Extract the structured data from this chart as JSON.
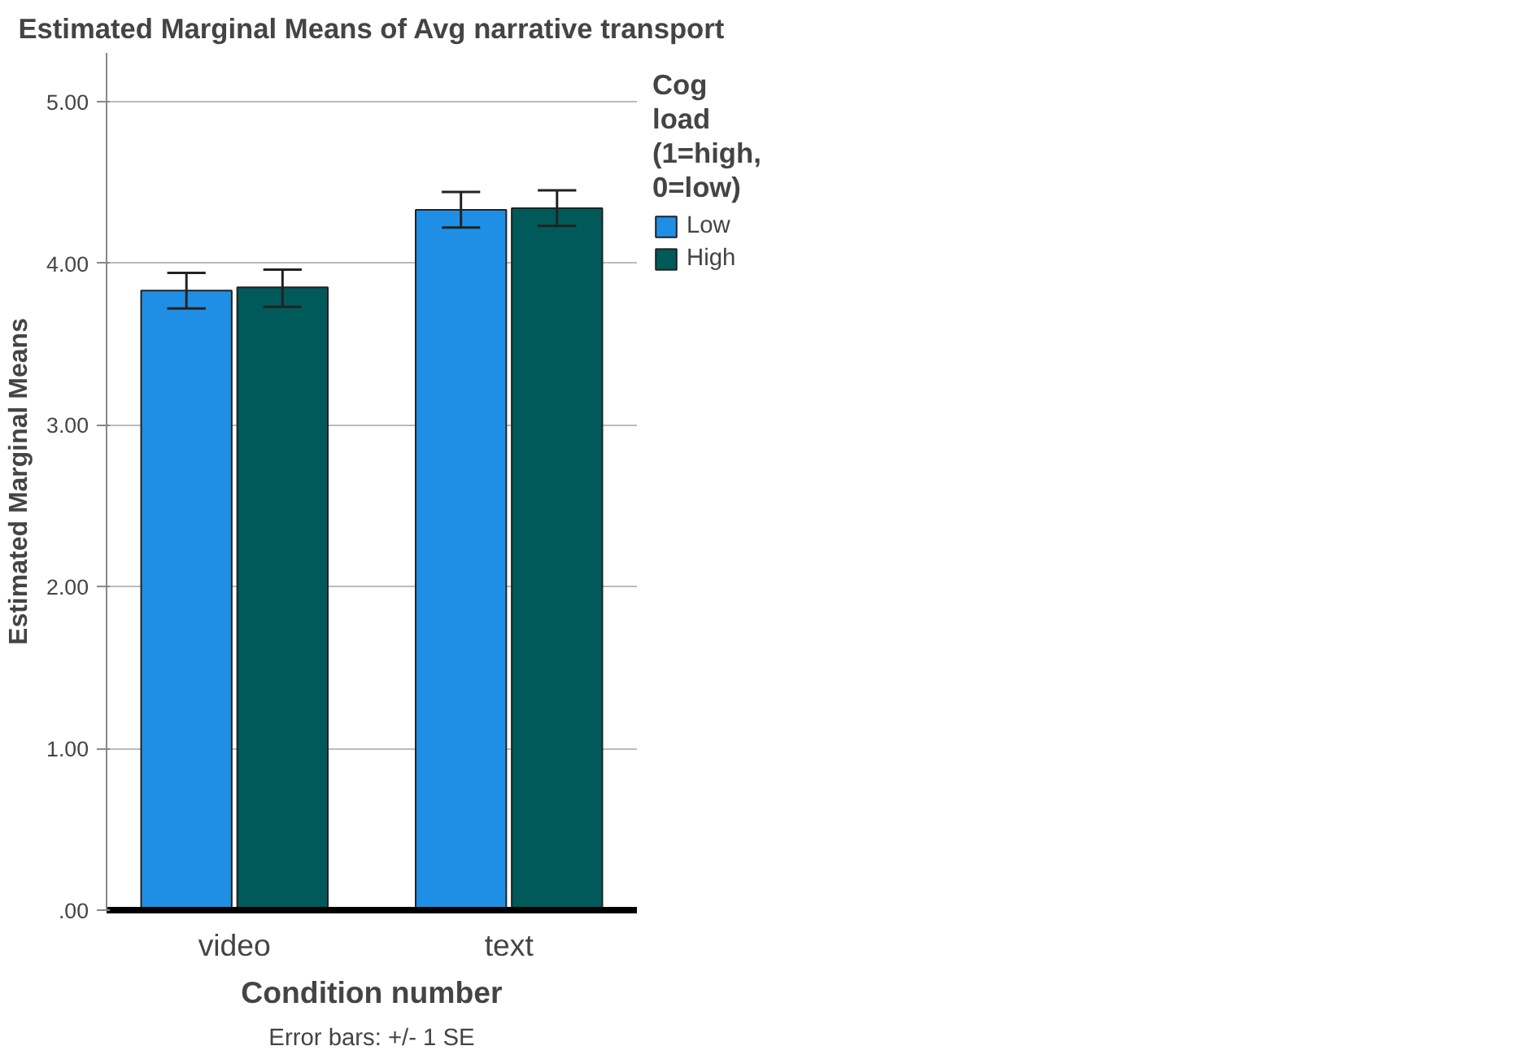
{
  "chart_data": {
    "type": "bar",
    "title": "Estimated Marginal Means of Avg narrative transport",
    "xlabel": "Condition number",
    "ylabel": "Estimated Marginal Means",
    "legend_title": "Cog load (1=high, 0=low)",
    "categories": [
      "video",
      "text"
    ],
    "series": [
      {
        "name": "Low",
        "color": "#1f8fe6",
        "values": [
          3.83,
          4.33
        ],
        "errors": [
          [
            3.72,
            3.94
          ],
          [
            4.22,
            4.44
          ]
        ]
      },
      {
        "name": "High",
        "color": "#005a5a",
        "values": [
          3.85,
          4.34
        ],
        "errors": [
          [
            3.73,
            3.96
          ],
          [
            4.23,
            4.45
          ]
        ]
      }
    ],
    "ylim": [
      0,
      5.3
    ],
    "yticks": [
      {
        "value": 0,
        "label": ".00"
      },
      {
        "value": 1,
        "label": "1.00"
      },
      {
        "value": 2,
        "label": "2.00"
      },
      {
        "value": 3,
        "label": "3.00"
      },
      {
        "value": 4,
        "label": "4.00"
      },
      {
        "value": 5,
        "label": "5.00"
      }
    ],
    "grid": "y",
    "legend": "right",
    "annotations": [
      "Error bars: +/- 1 SE"
    ]
  }
}
